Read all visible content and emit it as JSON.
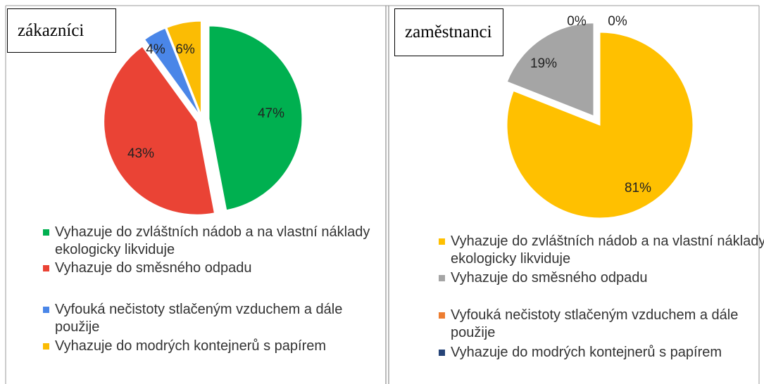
{
  "chart_data": [
    {
      "type": "pie",
      "title": "zákazníci",
      "categories": [
        "Vyhazuje do zvláštních nádob a na vlastní náklady ekologicky likviduje",
        "Vyhazuje do směsného odpadu",
        "Vyfouká nečistoty stlačeným vzduchem a dále použije",
        "Vyhazuje do modrých kontejnerů s papírem"
      ],
      "values": [
        47,
        43,
        4,
        6
      ],
      "value_labels": [
        "47%",
        "43%",
        "4%",
        "6%"
      ],
      "colors": [
        "#00b050",
        "#ea4335",
        "#4a86e8",
        "#fbbc04"
      ]
    },
    {
      "type": "pie",
      "title": "zaměstnanci",
      "categories": [
        "Vyhazuje do zvláštních nádob a na vlastní náklady ekologicky likviduje",
        "Vyhazuje do směsného odpadu",
        "Vyfouká nečistoty stlačeným vzduchem a dále použije",
        "Vyhazuje do modrých kontejnerů s papírem"
      ],
      "values": [
        81,
        19,
        0,
        0
      ],
      "value_labels": [
        "81%",
        "19%",
        "0%",
        "0%"
      ],
      "colors": [
        "#ffc000",
        "#a5a5a5",
        "#ed7d31",
        "#264478"
      ]
    }
  ]
}
